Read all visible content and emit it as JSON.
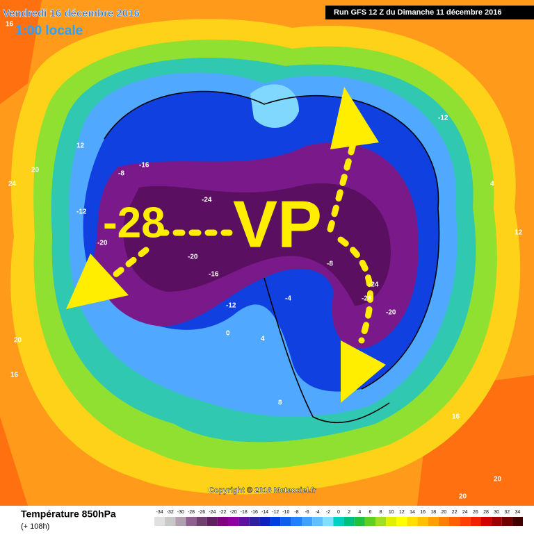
{
  "header": {
    "date": "Vendredi 16 décembre 2016",
    "time": "1:00 locale",
    "run": "Run GFS 12 Z du Dimanche 11 décembre 2016"
  },
  "annotations": {
    "value": "-28",
    "label": "VP"
  },
  "contour_labels": [
    "16",
    "20",
    "24",
    "12",
    "-8",
    "-12",
    "-16",
    "-20",
    "-24",
    "-20",
    "-16",
    "-12",
    "-4",
    "0",
    "4",
    "8",
    "16",
    "20",
    "-28",
    "-24",
    "-20",
    "-8",
    "-12",
    "4",
    "12",
    "16",
    "20",
    "20"
  ],
  "copyright": "Copyright © 2016 Meteociel.fr",
  "legend": {
    "title": "Température 850hPa",
    "subtitle": "(+ 108h)",
    "ticks": [
      -34,
      -32,
      -30,
      -28,
      -26,
      -24,
      -22,
      -20,
      -18,
      -16,
      -14,
      -12,
      -10,
      -8,
      -6,
      -4,
      -2,
      0,
      2,
      4,
      6,
      8,
      10,
      12,
      14,
      16,
      18,
      20,
      22,
      24,
      26,
      28,
      30,
      32,
      34
    ],
    "colors": [
      "#e0e0e0",
      "#c8c8c8",
      "#b0a0b0",
      "#906090",
      "#704070",
      "#602060",
      "#800080",
      "#9000a0",
      "#6010a0",
      "#3020a0",
      "#1020c0",
      "#0040e0",
      "#1060f0",
      "#2080ff",
      "#40a0ff",
      "#60c0ff",
      "#80e0ff",
      "#00d0c0",
      "#00c080",
      "#20c040",
      "#60d020",
      "#a0e020",
      "#e0f000",
      "#ffff00",
      "#ffe000",
      "#ffc000",
      "#ffa000",
      "#ff8000",
      "#ff6000",
      "#ff4000",
      "#f02000",
      "#d00000",
      "#a00000",
      "#700000",
      "#400000"
    ]
  }
}
